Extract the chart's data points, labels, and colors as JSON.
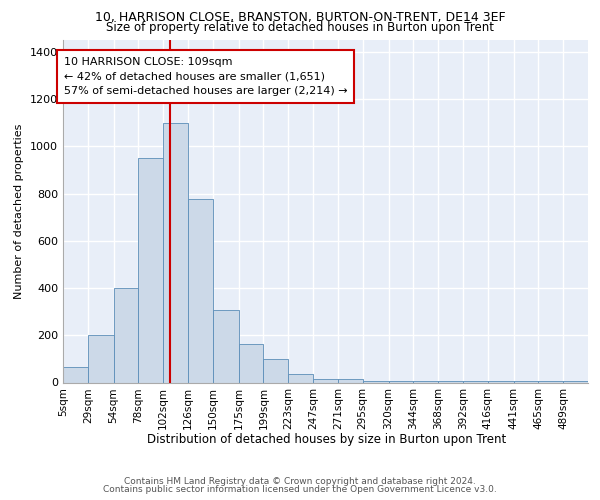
{
  "title1": "10, HARRISON CLOSE, BRANSTON, BURTON-ON-TRENT, DE14 3EF",
  "title2": "Size of property relative to detached houses in Burton upon Trent",
  "xlabel": "Distribution of detached houses by size in Burton upon Trent",
  "ylabel": "Number of detached properties",
  "footer1": "Contains HM Land Registry data © Crown copyright and database right 2024.",
  "footer2": "Contains public sector information licensed under the Open Government Licence v3.0.",
  "annotation_line1": "10 HARRISON CLOSE: 109sqm",
  "annotation_line2": "← 42% of detached houses are smaller (1,651)",
  "annotation_line3": "57% of semi-detached houses are larger (2,214) →",
  "property_size": 109,
  "bar_color": "#ccd9e8",
  "bar_edge_color": "#5b8db8",
  "red_line_color": "#cc0000",
  "background_color": "#e8eef8",
  "grid_color": "#ffffff",
  "categories": [
    "5sqm",
    "29sqm",
    "54sqm",
    "78sqm",
    "102sqm",
    "126sqm",
    "150sqm",
    "175sqm",
    "199sqm",
    "223sqm",
    "247sqm",
    "271sqm",
    "295sqm",
    "320sqm",
    "344sqm",
    "368sqm",
    "392sqm",
    "416sqm",
    "441sqm",
    "465sqm",
    "489sqm"
  ],
  "bin_edges": [
    5,
    29,
    54,
    78,
    102,
    126,
    150,
    175,
    199,
    223,
    247,
    271,
    295,
    320,
    344,
    368,
    392,
    416,
    441,
    465,
    489,
    513
  ],
  "values": [
    65,
    200,
    400,
    950,
    1100,
    775,
    305,
    165,
    100,
    35,
    15,
    15,
    5,
    5,
    5,
    5,
    5,
    5,
    5,
    5,
    5
  ],
  "ylim": [
    0,
    1450
  ],
  "yticks": [
    0,
    200,
    400,
    600,
    800,
    1000,
    1200,
    1400
  ]
}
